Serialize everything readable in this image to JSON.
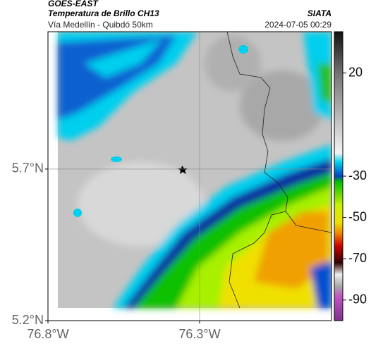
{
  "header": {
    "title": "GOES-EAST",
    "subtitle": "Temperatura de Brillo CH13",
    "source": "SIATA",
    "location": "Vía Medellín - Quibdó 50km",
    "datetime": "2024-07-05 00:29"
  },
  "map": {
    "xlim": [
      -76.8,
      -75.865
    ],
    "ylim": [
      5.2,
      6.153
    ],
    "xticks": [
      {
        "value": -76.8,
        "label": "76.8°W"
      },
      {
        "value": -76.3,
        "label": "76.3°W"
      }
    ],
    "yticks": [
      {
        "value": 5.2,
        "label": "5.2°N"
      },
      {
        "value": 5.7,
        "label": "5.7°N"
      }
    ],
    "grid": true
  },
  "colorbar": {
    "lim": [
      -100,
      40
    ],
    "ticks": [
      20,
      -30,
      -50,
      -70,
      -90
    ]
  }
}
